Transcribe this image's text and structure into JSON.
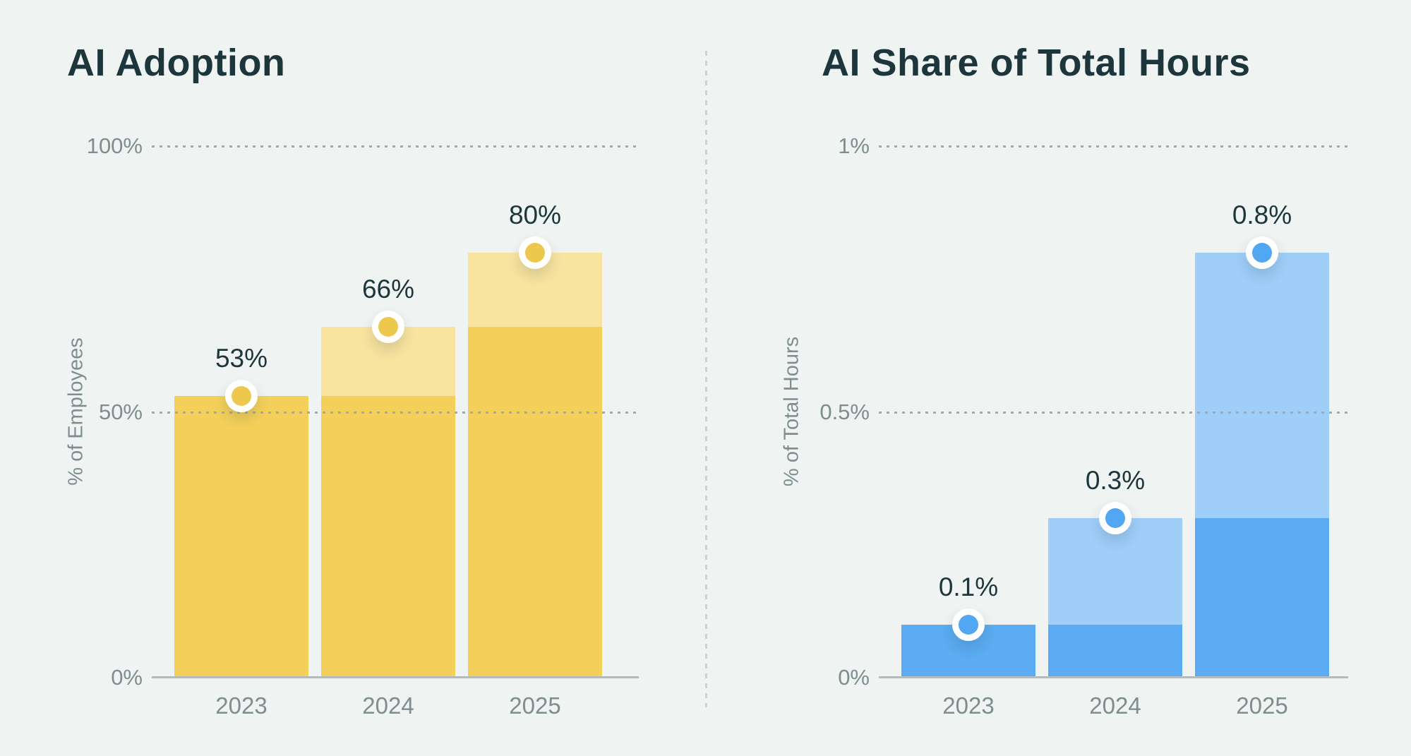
{
  "page": {
    "background": "#EFF3F1"
  },
  "theme": {
    "ink": "#1C363C",
    "muted": "#7E8D90",
    "gridline": "#9FABAC",
    "axis_line": "#B3BCBC",
    "divider": "#CBD4D3"
  },
  "chart_data": [
    {
      "type": "bar",
      "title": "AI Adoption",
      "ylabel": "% of Employees",
      "categories": [
        "2023",
        "2024",
        "2025"
      ],
      "values": [
        53,
        66,
        80
      ],
      "base_values": [
        53,
        53,
        66
      ],
      "bar_labels": [
        "53%",
        "66%",
        "80%"
      ],
      "yticks": [
        {
          "label": "0%",
          "value": 0
        },
        {
          "label": "50%",
          "value": 50
        },
        {
          "label": "100%",
          "value": 100
        }
      ],
      "ylim": [
        0,
        100
      ],
      "grid": "dotted-horizontal",
      "legend": "none",
      "colors": {
        "bar_light": "#F9E49F",
        "bar_dark": "#F4D05A",
        "marker": "#ECC94D"
      }
    },
    {
      "type": "bar",
      "title": "AI Share of Total Hours",
      "ylabel": "% of Total Hours",
      "categories": [
        "2023",
        "2024",
        "2025"
      ],
      "values": [
        0.1,
        0.3,
        0.8
      ],
      "base_values": [
        0.1,
        0.1,
        0.3
      ],
      "bar_labels": [
        "0.1%",
        "0.3%",
        "0.8%"
      ],
      "yticks": [
        {
          "label": "0%",
          "value": 0
        },
        {
          "label": "0.5%",
          "value": 0.5
        },
        {
          "label": "1%",
          "value": 1
        }
      ],
      "ylim": [
        0,
        1
      ],
      "grid": "dotted-horizontal",
      "legend": "none",
      "colors": {
        "bar_light": "#9FCEF9",
        "bar_dark": "#5BACF2",
        "marker": "#51A7F1"
      }
    }
  ]
}
